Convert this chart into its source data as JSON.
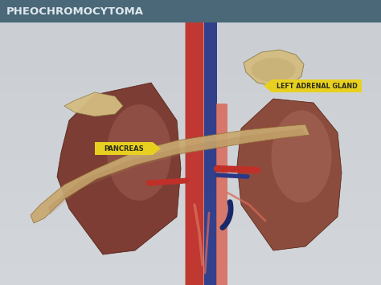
{
  "title": "PHEOCHROMOCYTOMA",
  "title_bar_color_top": "#4a6878",
  "title_bar_color_bot": "#3a5868",
  "title_text_color": "#e0e8ee",
  "bg_color": "#c5cdd5",
  "label_pancreas": "PANCREAS",
  "label_adrenal": "LEFT ADRENAL GLAND",
  "label_bg_color": "#e8d020",
  "label_text_color": "#2a2a1a",
  "kidney_r_color": "#7a3830",
  "kidney_l_color": "#8a4838",
  "kidney_l_highlight": "#b07060",
  "kidney_r_highlight": "#c08070",
  "pancreas_color": "#c8a870",
  "pancreas_shade": "#a88050",
  "adrenal_color": "#d4bc80",
  "adrenal_shade": "#b89c60",
  "vessel_red": "#c03028",
  "vessel_red_light": "#d86858",
  "vessel_blue": "#2a3888",
  "vessel_blue_dark": "#1a2868",
  "vessel_pink": "#c07068"
}
